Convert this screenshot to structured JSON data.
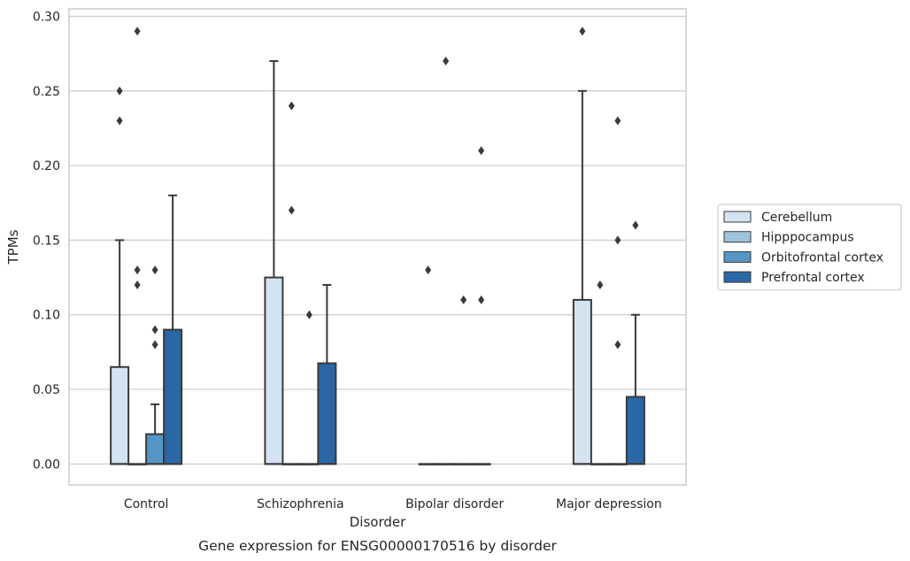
{
  "chart_data": {
    "type": "box",
    "caption": "Gene expression for ENSG00000170516 by disorder",
    "xlabel": "Disorder",
    "ylabel": "TPMs",
    "ylim": [
      -0.014,
      0.305
    ],
    "yticks": [
      0.0,
      0.05,
      0.1,
      0.15,
      0.2,
      0.25,
      0.3
    ],
    "ytick_labels": [
      "0.00",
      "0.05",
      "0.10",
      "0.15",
      "0.20",
      "0.25",
      "0.30"
    ],
    "grid": "y",
    "legend_position": "right",
    "categories": [
      "Control",
      "Schizophrenia",
      "Bipolar disorder",
      "Major depression"
    ],
    "series": [
      {
        "name": "Cerebellum",
        "color": "#d4e3f1",
        "boxes": [
          {
            "q1": 0,
            "median": 0,
            "q3": 0.065,
            "whisker_low": 0,
            "whisker_high": 0.15,
            "outliers": [
              0.23,
              0.25
            ]
          },
          {
            "q1": 0,
            "median": 0,
            "q3": 0.125,
            "whisker_low": 0,
            "whisker_high": 0.27,
            "outliers": []
          },
          {
            "q1": 0,
            "median": 0,
            "q3": 0,
            "whisker_low": 0,
            "whisker_high": 0,
            "outliers": [
              0.13
            ]
          },
          {
            "q1": 0,
            "median": 0,
            "q3": 0.11,
            "whisker_low": 0,
            "whisker_high": 0.25,
            "outliers": [
              0.29
            ]
          }
        ]
      },
      {
        "name": "Hipppocampus",
        "color": "#9dc3dd",
        "boxes": [
          {
            "q1": 0,
            "median": 0,
            "q3": 0,
            "whisker_low": 0,
            "whisker_high": 0,
            "outliers": [
              0.12,
              0.13,
              0.29
            ]
          },
          {
            "q1": 0,
            "median": 0,
            "q3": 0,
            "whisker_low": 0,
            "whisker_high": 0,
            "outliers": [
              0.17,
              0.24
            ]
          },
          {
            "q1": 0,
            "median": 0,
            "q3": 0,
            "whisker_low": 0,
            "whisker_high": 0,
            "outliers": [
              0.27
            ]
          },
          {
            "q1": 0,
            "median": 0,
            "q3": 0,
            "whisker_low": 0,
            "whisker_high": 0,
            "outliers": [
              0.12
            ]
          }
        ]
      },
      {
        "name": "Orbitofrontal cortex",
        "color": "#5696c6",
        "boxes": [
          {
            "q1": 0,
            "median": 0,
            "q3": 0.02,
            "whisker_low": 0,
            "whisker_high": 0.04,
            "outliers": [
              0.08,
              0.09,
              0.13
            ]
          },
          {
            "q1": 0,
            "median": 0,
            "q3": 0,
            "whisker_low": 0,
            "whisker_high": 0,
            "outliers": [
              0.1
            ]
          },
          {
            "q1": 0,
            "median": 0,
            "q3": 0,
            "whisker_low": 0,
            "whisker_high": 0,
            "outliers": [
              0.11
            ]
          },
          {
            "q1": 0,
            "median": 0,
            "q3": 0,
            "whisker_low": 0,
            "whisker_high": 0,
            "outliers": [
              0.08,
              0.15,
              0.23
            ]
          }
        ]
      },
      {
        "name": "Prefrontal cortex",
        "color": "#2a67a5",
        "boxes": [
          {
            "q1": 0,
            "median": 0,
            "q3": 0.09,
            "whisker_low": 0,
            "whisker_high": 0.18,
            "outliers": []
          },
          {
            "q1": 0,
            "median": 0,
            "q3": 0.0675,
            "whisker_low": 0,
            "whisker_high": 0.12,
            "outliers": []
          },
          {
            "q1": 0,
            "median": 0,
            "q3": 0,
            "whisker_low": 0,
            "whisker_high": 0,
            "outliers": [
              0.11,
              0.21
            ]
          },
          {
            "q1": 0,
            "median": 0,
            "q3": 0.045,
            "whisker_low": 0,
            "whisker_high": 0.1,
            "outliers": [
              0.16
            ]
          }
        ]
      }
    ]
  }
}
